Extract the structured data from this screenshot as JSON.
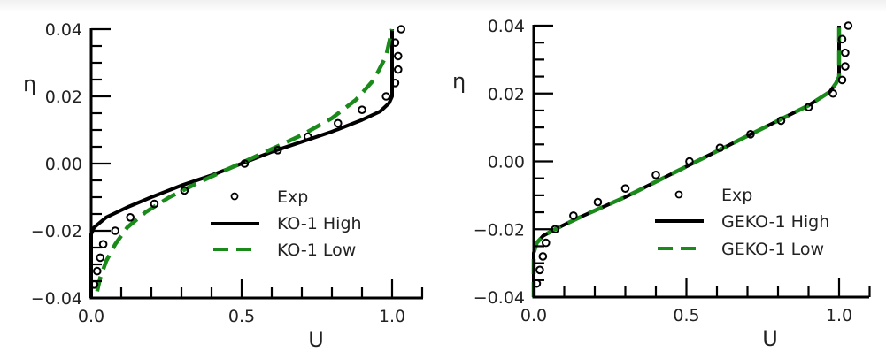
{
  "chart_data": [
    {
      "type": "line",
      "xlabel": "U",
      "ylabel": "η",
      "xlim": [
        0.0,
        1.1
      ],
      "ylim": [
        -0.04,
        0.04
      ],
      "xticks": [
        "0.0",
        "0.5",
        "1.0"
      ],
      "yticks": [
        "0.04",
        "0.02",
        "0.00",
        "−0.02",
        "−0.04"
      ],
      "legend_position": "lower-right",
      "colors": {
        "exp": "#000000",
        "high": "#000000",
        "low": "#1a8a1a"
      },
      "series": [
        {
          "name": "Exp",
          "style": "markers",
          "x": [
            0.01,
            0.02,
            0.03,
            0.04,
            0.08,
            0.13,
            0.21,
            0.31,
            0.51,
            0.62,
            0.72,
            0.82,
            0.9,
            0.98,
            1.01,
            1.02,
            1.02,
            1.01,
            1.03
          ],
          "y": [
            -0.036,
            -0.032,
            -0.028,
            -0.024,
            -0.02,
            -0.016,
            -0.012,
            -0.008,
            0.0,
            0.004,
            0.008,
            0.012,
            0.016,
            0.02,
            0.024,
            0.028,
            0.032,
            0.036,
            0.04
          ]
        },
        {
          "name": "KO-1 High",
          "style": "solid",
          "x": [
            0.0,
            0.0,
            0.01,
            0.05,
            0.12,
            0.2,
            0.3,
            0.4,
            0.5,
            0.6,
            0.7,
            0.8,
            0.9,
            0.96,
            0.99,
            1.0,
            1.0
          ],
          "y": [
            -0.04,
            -0.021,
            -0.019,
            -0.016,
            -0.013,
            -0.01,
            -0.0065,
            -0.0035,
            0.0,
            0.0035,
            0.0065,
            0.0095,
            0.013,
            0.0155,
            0.018,
            0.02,
            0.04
          ]
        },
        {
          "name": "KO-1 Low",
          "style": "dashed",
          "x": [
            0.02,
            0.03,
            0.05,
            0.08,
            0.12,
            0.18,
            0.26,
            0.36,
            0.47,
            0.58,
            0.7,
            0.8,
            0.88,
            0.94,
            0.98,
            1.0
          ],
          "y": [
            -0.038,
            -0.034,
            -0.029,
            -0.024,
            -0.019,
            -0.0145,
            -0.01,
            -0.0055,
            -0.001,
            0.0035,
            0.0085,
            0.0135,
            0.019,
            0.025,
            0.032,
            0.04
          ]
        }
      ]
    },
    {
      "type": "line",
      "xlabel": "U",
      "ylabel": "η",
      "xlim": [
        0.0,
        1.1
      ],
      "ylim": [
        -0.04,
        0.04
      ],
      "xticks": [
        "0.0",
        "0.5",
        "1.0"
      ],
      "yticks": [
        "0.04",
        "0.02",
        "0.00",
        "−0.02",
        "−0.04"
      ],
      "legend_position": "lower-right",
      "colors": {
        "exp": "#000000",
        "high": "#000000",
        "low": "#1a8a1a"
      },
      "series": [
        {
          "name": "Exp",
          "style": "markers",
          "x": [
            0.01,
            0.02,
            0.03,
            0.04,
            0.07,
            0.13,
            0.21,
            0.3,
            0.4,
            0.51,
            0.61,
            0.71,
            0.81,
            0.9,
            0.98,
            1.01,
            1.02,
            1.02,
            1.01,
            1.03
          ],
          "y": [
            -0.036,
            -0.032,
            -0.028,
            -0.024,
            -0.02,
            -0.016,
            -0.012,
            -0.008,
            -0.004,
            0.0,
            0.004,
            0.008,
            0.012,
            0.016,
            0.02,
            0.024,
            0.028,
            0.032,
            0.036,
            0.04
          ]
        },
        {
          "name": "GEKO-1 High",
          "style": "solid",
          "x": [
            0.0,
            0.0,
            0.01,
            0.03,
            0.07,
            0.15,
            0.3,
            0.5,
            0.7,
            0.9,
            0.97,
            0.99,
            1.0,
            1.0
          ],
          "y": [
            -0.04,
            -0.027,
            -0.024,
            -0.022,
            -0.02,
            -0.0165,
            -0.0105,
            -0.0015,
            0.0075,
            0.0165,
            0.0205,
            0.023,
            0.025,
            0.04
          ]
        },
        {
          "name": "GEKO-1 Low",
          "style": "dashed",
          "x": [
            0.0,
            0.0,
            0.01,
            0.03,
            0.07,
            0.15,
            0.3,
            0.5,
            0.7,
            0.9,
            0.97,
            0.99,
            1.0,
            1.0
          ],
          "y": [
            -0.04,
            -0.027,
            -0.024,
            -0.022,
            -0.02,
            -0.0165,
            -0.0105,
            -0.0015,
            0.0075,
            0.0165,
            0.0205,
            0.023,
            0.025,
            0.04
          ]
        }
      ]
    }
  ]
}
